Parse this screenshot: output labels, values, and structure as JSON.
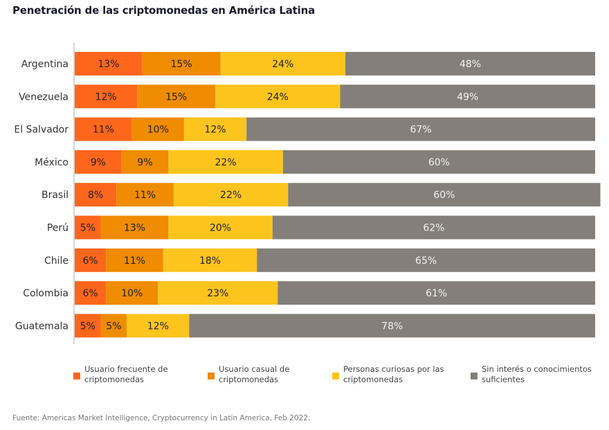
{
  "title": "Penetración de las criptomonedas en América Latina",
  "source": "Fuente: Americas Market Intelligence, Cryptocurrency in Latin America, Feb 2022.",
  "chart_data": {
    "type": "bar",
    "orientation": "horizontal",
    "stacked": true,
    "title": "Penetración de las criptomonedas en América Latina",
    "xlabel": "",
    "ylabel": "",
    "xlim": [
      0,
      100
    ],
    "grid": false,
    "legend_position": "bottom",
    "categories": [
      "Argentina",
      "Venezuela",
      "El Salvador",
      "México",
      "Brasil",
      "Perú",
      "Chile",
      "Colombia",
      "Guatemala"
    ],
    "series": [
      {
        "name": "Usuario frecuente de criptomonedas",
        "color": "#fe661c",
        "label_color": "#222222",
        "values": [
          13,
          12,
          11,
          9,
          8,
          5,
          6,
          6,
          5
        ]
      },
      {
        "name": "Usuario casual de criptomonedas",
        "color": "#f08c00",
        "label_color": "#222222",
        "values": [
          15,
          15,
          10,
          9,
          11,
          13,
          11,
          10,
          5
        ]
      },
      {
        "name": "Personas curiosas por las criptomonedas",
        "color": "#fdc41e",
        "label_color": "#222222",
        "values": [
          24,
          24,
          12,
          22,
          22,
          20,
          18,
          23,
          12
        ]
      },
      {
        "name": "Sin interés o conocimientos suficientes",
        "color": "#847f7a",
        "label_color": "#f2f2f2",
        "values": [
          48,
          49,
          67,
          60,
          60,
          62,
          65,
          61,
          78
        ]
      }
    ],
    "value_suffix": "%"
  },
  "legend": [
    {
      "label_line1": "Usuario frecuente de",
      "label_line2": "criptomonedas",
      "color": "#fe661c"
    },
    {
      "label_line1": "Usuario casual de",
      "label_line2": "criptomonedas",
      "color": "#f08c00"
    },
    {
      "label_line1": "Personas curiosas por las",
      "label_line2": "criptomonedas",
      "color": "#fdc41e"
    },
    {
      "label_line1": "Sin interés o conocimientos",
      "label_line2": "suficientes",
      "color": "#847f7a"
    }
  ]
}
